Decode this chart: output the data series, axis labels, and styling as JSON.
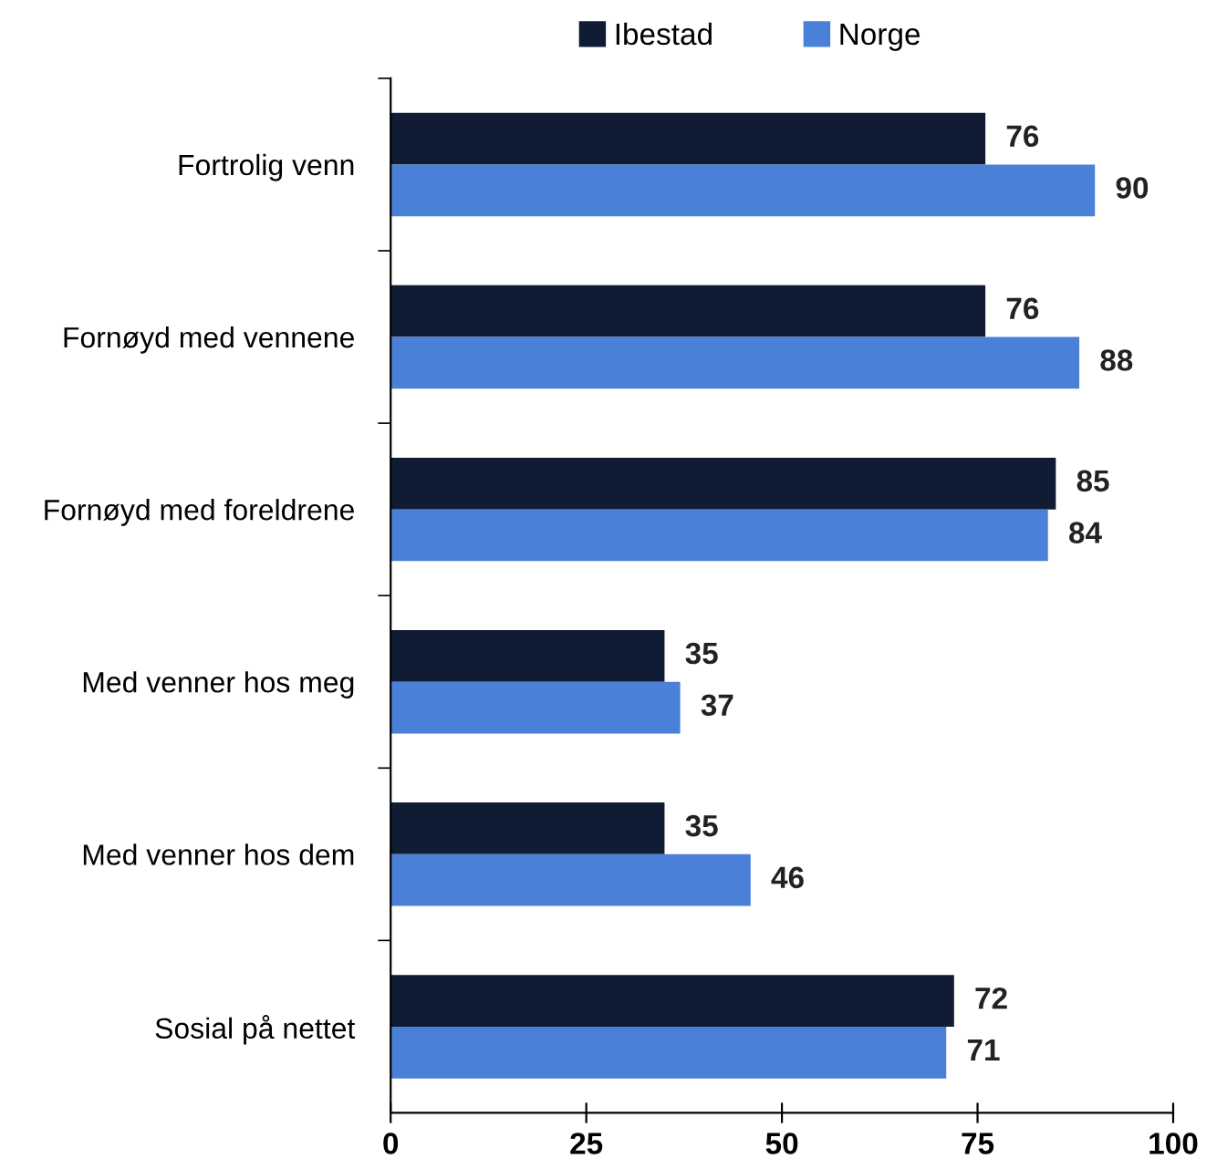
{
  "chart_data": {
    "type": "bar",
    "orientation": "horizontal",
    "categories": [
      "Fortrolig venn",
      "Fornøyd med vennene",
      "Fornøyd med foreldrene",
      "Med venner hos meg",
      "Med venner hos dem",
      "Sosial på nettet"
    ],
    "series": [
      {
        "name": "Ibestad",
        "color": "#0f1c33",
        "values": [
          76,
          76,
          85,
          35,
          35,
          72
        ]
      },
      {
        "name": "Norge",
        "color": "#4a80d8",
        "values": [
          90,
          88,
          84,
          37,
          46,
          71
        ]
      }
    ],
    "xlim": [
      0,
      100
    ],
    "xticks": [
      0,
      25,
      50,
      75,
      100
    ],
    "data_labels": true,
    "legend": "top",
    "grid": false
  }
}
